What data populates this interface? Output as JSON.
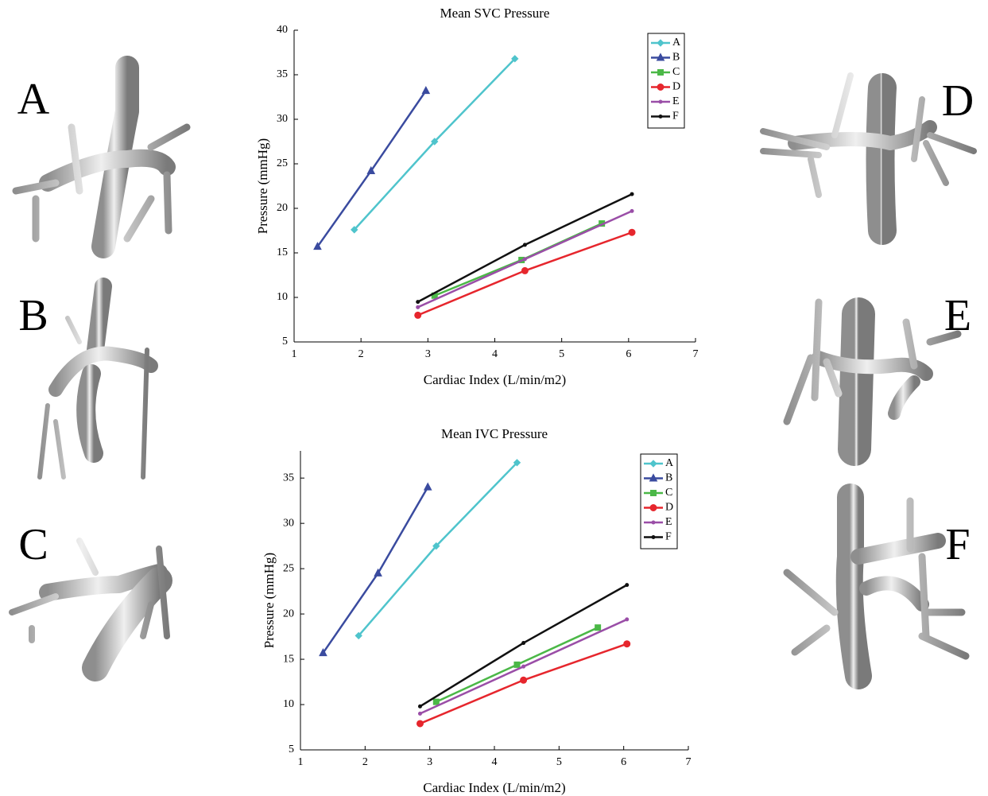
{
  "panels": [
    "A",
    "B",
    "C",
    "D",
    "E",
    "F"
  ],
  "chart_data": [
    {
      "type": "line",
      "title": "Mean SVC Pressure",
      "xlabel": "Cardiac Index (L/min/m2)",
      "ylabel": "Pressure (mmHg)",
      "xlim": [
        1,
        7
      ],
      "xticks": [
        1,
        2,
        3,
        4,
        5,
        6,
        7
      ],
      "ylim": [
        5,
        40
      ],
      "yticks": [
        5,
        10,
        15,
        20,
        25,
        30,
        35,
        40
      ],
      "legend": "upper right",
      "series": [
        {
          "name": "A",
          "color": "#4fc4cc",
          "marker": "diamond",
          "x": [
            1.9,
            3.1,
            4.3
          ],
          "values": [
            17.6,
            27.5,
            36.8
          ]
        },
        {
          "name": "B",
          "color": "#3a4b9f",
          "marker": "triangle",
          "x": [
            1.35,
            2.15,
            2.97
          ],
          "values": [
            15.7,
            24.2,
            33.2
          ]
        },
        {
          "name": "C",
          "color": "#4bb847",
          "marker": "square",
          "x": [
            3.1,
            4.4,
            5.6
          ],
          "values": [
            10.2,
            14.2,
            18.3
          ]
        },
        {
          "name": "D",
          "color": "#e6262d",
          "marker": "circle",
          "x": [
            2.85,
            4.45,
            6.05
          ],
          "values": [
            8.0,
            13.0,
            17.3
          ]
        },
        {
          "name": "E",
          "color": "#9a4ea7",
          "marker": "dot",
          "x": [
            2.85,
            4.45,
            6.05
          ],
          "values": [
            8.9,
            14.3,
            19.7
          ]
        },
        {
          "name": "F",
          "color": "#111111",
          "marker": "dot",
          "x": [
            2.85,
            4.45,
            6.05
          ],
          "values": [
            9.5,
            15.9,
            21.6
          ]
        }
      ]
    },
    {
      "type": "line",
      "title": "Mean IVC Pressure",
      "xlabel": "Cardiac Index (L/min/m2)",
      "ylabel": "Pressure (mmHg)",
      "xlim": [
        1,
        7
      ],
      "xticks": [
        1,
        2,
        3,
        4,
        5,
        6,
        7
      ],
      "ylim": [
        5,
        38
      ],
      "yticks": [
        5,
        10,
        15,
        20,
        25,
        30,
        35
      ],
      "legend": "upper right",
      "series": [
        {
          "name": "A",
          "color": "#4fc4cc",
          "marker": "diamond",
          "x": [
            1.9,
            3.1,
            4.35
          ],
          "values": [
            17.6,
            27.5,
            36.7
          ]
        },
        {
          "name": "B",
          "color": "#3a4b9f",
          "marker": "triangle",
          "x": [
            1.35,
            2.2,
            2.97
          ],
          "values": [
            15.7,
            24.5,
            34.0
          ]
        },
        {
          "name": "C",
          "color": "#4bb847",
          "marker": "square",
          "x": [
            3.1,
            4.35,
            5.6
          ],
          "values": [
            10.3,
            14.4,
            18.5
          ]
        },
        {
          "name": "D",
          "color": "#e6262d",
          "marker": "circle",
          "x": [
            2.85,
            4.45,
            6.05
          ],
          "values": [
            7.9,
            12.7,
            16.7
          ]
        },
        {
          "name": "E",
          "color": "#9a4ea7",
          "marker": "dot",
          "x": [
            2.85,
            4.45,
            6.05
          ],
          "values": [
            9.0,
            14.2,
            19.4
          ]
        },
        {
          "name": "F",
          "color": "#111111",
          "marker": "dot",
          "x": [
            2.85,
            4.45,
            6.05
          ],
          "values": [
            9.8,
            16.8,
            23.2
          ]
        }
      ]
    }
  ]
}
